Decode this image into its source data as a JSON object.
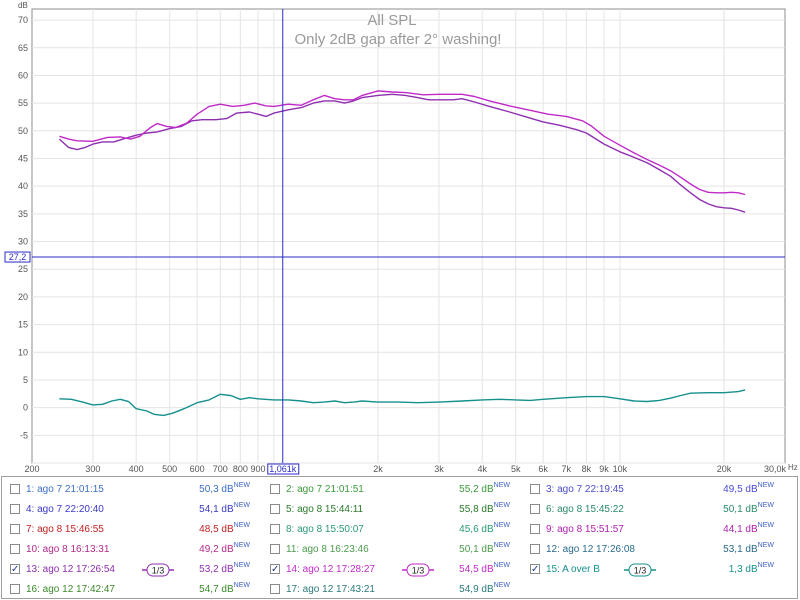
{
  "chart_data": {
    "type": "line",
    "title": "All SPL",
    "subtitle": "Only 2dB gap after 2° washing!",
    "ylabel": "dB",
    "xunit": "Hz",
    "xscale": "log",
    "xlim": [
      200,
      30000
    ],
    "ylim": [
      -10,
      72
    ],
    "grid": true,
    "x_tick_labels": [
      {
        "v": 200,
        "t": "200"
      },
      {
        "v": 300,
        "t": "300"
      },
      {
        "v": 400,
        "t": "400"
      },
      {
        "v": 500,
        "t": "500"
      },
      {
        "v": 600,
        "t": "600"
      },
      {
        "v": 700,
        "t": "700"
      },
      {
        "v": 800,
        "t": "800"
      },
      {
        "v": 900,
        "t": "900"
      },
      {
        "v": 2000,
        "t": "2k"
      },
      {
        "v": 3000,
        "t": "3k"
      },
      {
        "v": 4000,
        "t": "4k"
      },
      {
        "v": 5000,
        "t": "5k"
      },
      {
        "v": 6000,
        "t": "6k"
      },
      {
        "v": 7000,
        "t": "7k"
      },
      {
        "v": 8000,
        "t": "8k"
      },
      {
        "v": 9000,
        "t": "9k"
      },
      {
        "v": 10000,
        "t": "10k"
      },
      {
        "v": 20000,
        "t": "20k"
      },
      {
        "v": 30000,
        "t": "30,0k"
      }
    ],
    "y_tick_labels": [
      {
        "v": 70,
        "t": "70"
      },
      {
        "v": 65,
        "t": "65"
      },
      {
        "v": 60,
        "t": "60"
      },
      {
        "v": 55,
        "t": "55"
      },
      {
        "v": 50,
        "t": "50"
      },
      {
        "v": 45,
        "t": "45"
      },
      {
        "v": 40,
        "t": "40"
      },
      {
        "v": 35,
        "t": "35"
      },
      {
        "v": 30,
        "t": "30"
      },
      {
        "v": 25,
        "t": "25"
      },
      {
        "v": 20,
        "t": "20"
      },
      {
        "v": 15,
        "t": "15"
      },
      {
        "v": 10,
        "t": "10"
      },
      {
        "v": 5,
        "t": "5"
      },
      {
        "v": 0,
        "t": "0"
      },
      {
        "v": -5,
        "t": "-5"
      }
    ],
    "cursor": {
      "x": 1061,
      "x_label": "1,061k",
      "y": 27.2,
      "y_label": "27,2",
      "color": "#2b2bc8"
    },
    "series": [
      {
        "name": "13: ago 12 17:26:54",
        "color": "#8e2fb0",
        "points": [
          [
            240,
            48.5
          ],
          [
            255,
            47
          ],
          [
            270,
            46.6
          ],
          [
            285,
            47
          ],
          [
            300,
            47.6
          ],
          [
            320,
            48
          ],
          [
            345,
            48
          ],
          [
            370,
            48.6
          ],
          [
            400,
            49.2
          ],
          [
            430,
            49.6
          ],
          [
            460,
            49.8
          ],
          [
            500,
            50.4
          ],
          [
            540,
            50.8
          ],
          [
            580,
            51.8
          ],
          [
            620,
            52
          ],
          [
            680,
            52
          ],
          [
            730,
            52.2
          ],
          [
            780,
            53.2
          ],
          [
            850,
            53.4
          ],
          [
            900,
            53
          ],
          [
            950,
            52.6
          ],
          [
            1000,
            53.2
          ],
          [
            1100,
            53.8
          ],
          [
            1200,
            54.2
          ],
          [
            1300,
            55
          ],
          [
            1400,
            55.4
          ],
          [
            1500,
            55.4
          ],
          [
            1600,
            55
          ],
          [
            1700,
            55.4
          ],
          [
            1800,
            56
          ],
          [
            2000,
            56.4
          ],
          [
            2200,
            56.6
          ],
          [
            2400,
            56.4
          ],
          [
            2600,
            56
          ],
          [
            2800,
            55.6
          ],
          [
            3000,
            55.6
          ],
          [
            3300,
            55.6
          ],
          [
            3500,
            55.8
          ],
          [
            3800,
            55.2
          ],
          [
            4200,
            54.4
          ],
          [
            4800,
            53.4
          ],
          [
            5300,
            52.6
          ],
          [
            6000,
            51.6
          ],
          [
            6700,
            51
          ],
          [
            7500,
            50.2
          ],
          [
            8000,
            49.6
          ],
          [
            9000,
            47.6
          ],
          [
            10000,
            46.2
          ],
          [
            11000,
            45.2
          ],
          [
            12000,
            44.2
          ],
          [
            13000,
            43
          ],
          [
            14000,
            41.8
          ],
          [
            15000,
            40.2
          ],
          [
            16000,
            38.8
          ],
          [
            17000,
            37.6
          ],
          [
            18000,
            36.8
          ],
          [
            19000,
            36.3
          ],
          [
            20000,
            36.1
          ],
          [
            21000,
            36
          ],
          [
            22000,
            35.7
          ],
          [
            23000,
            35.3
          ]
        ]
      },
      {
        "name": "14: ago 12 17:28:27",
        "color": "#c02ac8",
        "points": [
          [
            240,
            49
          ],
          [
            255,
            48.5
          ],
          [
            270,
            48.2
          ],
          [
            300,
            48.1
          ],
          [
            330,
            48.8
          ],
          [
            360,
            48.9
          ],
          [
            385,
            48.5
          ],
          [
            410,
            49
          ],
          [
            440,
            50.6
          ],
          [
            460,
            51.3
          ],
          [
            490,
            50.8
          ],
          [
            520,
            50.6
          ],
          [
            560,
            51.4
          ],
          [
            600,
            53
          ],
          [
            650,
            54.4
          ],
          [
            700,
            54.8
          ],
          [
            760,
            54.4
          ],
          [
            820,
            54.6
          ],
          [
            880,
            55
          ],
          [
            950,
            54.5
          ],
          [
            1000,
            54.4
          ],
          [
            1100,
            54.8
          ],
          [
            1200,
            54.6
          ],
          [
            1300,
            55.6
          ],
          [
            1400,
            56.4
          ],
          [
            1500,
            55.8
          ],
          [
            1600,
            55.6
          ],
          [
            1700,
            55.6
          ],
          [
            1800,
            56.4
          ],
          [
            2000,
            57.2
          ],
          [
            2200,
            57
          ],
          [
            2400,
            56.9
          ],
          [
            2700,
            56.5
          ],
          [
            3000,
            56.6
          ],
          [
            3500,
            56.6
          ],
          [
            3800,
            56.2
          ],
          [
            4200,
            55.4
          ],
          [
            4800,
            54.5
          ],
          [
            5500,
            53.7
          ],
          [
            6200,
            53
          ],
          [
            7000,
            52.6
          ],
          [
            7800,
            51.8
          ],
          [
            8300,
            50.8
          ],
          [
            9000,
            49
          ],
          [
            10000,
            47.4
          ],
          [
            11000,
            46
          ],
          [
            12000,
            44.8
          ],
          [
            13000,
            43.8
          ],
          [
            14000,
            42.8
          ],
          [
            15000,
            41.6
          ],
          [
            16000,
            40.4
          ],
          [
            17000,
            39.4
          ],
          [
            18000,
            38.9
          ],
          [
            19000,
            38.8
          ],
          [
            20000,
            38.8
          ],
          [
            21000,
            38.9
          ],
          [
            22000,
            38.8
          ],
          [
            23000,
            38.5
          ]
        ]
      },
      {
        "name": "15: A over B",
        "color": "#15908e",
        "points": [
          [
            240,
            1.6
          ],
          [
            260,
            1.5
          ],
          [
            280,
            1
          ],
          [
            300,
            0.5
          ],
          [
            320,
            0.6
          ],
          [
            340,
            1.2
          ],
          [
            360,
            1.5
          ],
          [
            380,
            1.1
          ],
          [
            400,
            -0.2
          ],
          [
            430,
            -0.6
          ],
          [
            450,
            -1.2
          ],
          [
            480,
            -1.4
          ],
          [
            510,
            -1
          ],
          [
            550,
            -0.2
          ],
          [
            600,
            0.9
          ],
          [
            650,
            1.4
          ],
          [
            700,
            2.4
          ],
          [
            750,
            2.2
          ],
          [
            800,
            1.5
          ],
          [
            850,
            1.8
          ],
          [
            900,
            1.6
          ],
          [
            1000,
            1.4
          ],
          [
            1100,
            1.4
          ],
          [
            1200,
            1.2
          ],
          [
            1300,
            0.9
          ],
          [
            1400,
            1
          ],
          [
            1500,
            1.2
          ],
          [
            1600,
            0.9
          ],
          [
            1700,
            1
          ],
          [
            1800,
            1.2
          ],
          [
            2000,
            1
          ],
          [
            2300,
            1
          ],
          [
            2600,
            0.9
          ],
          [
            3000,
            1
          ],
          [
            3500,
            1.2
          ],
          [
            4000,
            1.4
          ],
          [
            4500,
            1.5
          ],
          [
            5000,
            1.4
          ],
          [
            5500,
            1.3
          ],
          [
            6000,
            1.5
          ],
          [
            7000,
            1.8
          ],
          [
            8000,
            2
          ],
          [
            9000,
            2
          ],
          [
            10000,
            1.6
          ],
          [
            11000,
            1.2
          ],
          [
            12000,
            1.1
          ],
          [
            13000,
            1.3
          ],
          [
            14000,
            1.7
          ],
          [
            15000,
            2.2
          ],
          [
            16000,
            2.6
          ],
          [
            18000,
            2.7
          ],
          [
            20000,
            2.7
          ],
          [
            22000,
            2.9
          ],
          [
            23000,
            3.2
          ]
        ]
      }
    ]
  },
  "legend": {
    "rows": [
      [
        {
          "label": "1: ago 7 21:01:15",
          "value": "50,3 dB",
          "new": "NEW",
          "color": "#3a6fc4",
          "checked": false,
          "smooth": ""
        },
        {
          "label": "2: ago 7 21:01:51",
          "value": "55,2 dB",
          "new": "NEW",
          "color": "#3a9a3a",
          "checked": false,
          "smooth": ""
        },
        {
          "label": "3: ago 7 22:19:45",
          "value": "49,5 dB",
          "new": "NEW",
          "color": "#4a4ad0",
          "checked": false,
          "smooth": ""
        }
      ],
      [
        {
          "label": "4: ago 7 22:20:40",
          "value": "54,1 dB",
          "new": "NEW",
          "color": "#3a3ac8",
          "checked": false,
          "smooth": ""
        },
        {
          "label": "5: ago 8 15:44:11",
          "value": "55,8 dB",
          "new": "NEW",
          "color": "#2a7a2a",
          "checked": false,
          "smooth": ""
        },
        {
          "label": "6: ago 8 15:45:22",
          "value": "50,1 dB",
          "new": "NEW",
          "color": "#2a8a6a",
          "checked": false,
          "smooth": ""
        }
      ],
      [
        {
          "label": "7: ago 8 15:46:55",
          "value": "48,5 dB",
          "new": "NEW",
          "color": "#c02020",
          "checked": false,
          "smooth": ""
        },
        {
          "label": "8: ago 8 15:50:07",
          "value": "45,6 dB",
          "new": "NEW",
          "color": "#2a9a7a",
          "checked": false,
          "smooth": ""
        },
        {
          "label": "9: ago 8 15:51:57",
          "value": "44,1 dB",
          "new": "NEW",
          "color": "#b020b0",
          "checked": false,
          "smooth": ""
        }
      ],
      [
        {
          "label": "10: ago 8 16:13:31",
          "value": "49,2 dB",
          "new": "NEW",
          "color": "#b02a8a",
          "checked": false,
          "smooth": ""
        },
        {
          "label": "11: ago 8 16:23:46",
          "value": "50,1 dB",
          "new": "NEW",
          "color": "#4a9a4a",
          "checked": false,
          "smooth": ""
        },
        {
          "label": "12: ago 12 17:26:08",
          "value": "53,1 dB",
          "new": "NEW",
          "color": "#2a6a8a",
          "checked": false,
          "smooth": ""
        }
      ],
      [
        {
          "label": "13: ago 12 17:26:54",
          "value": "53,2 dB",
          "new": "NEW",
          "color": "#8e2fb0",
          "checked": true,
          "smooth": "1/3"
        },
        {
          "label": "14: ago 12 17:28:27",
          "value": "54,5 dB",
          "new": "NEW",
          "color": "#c02ac8",
          "checked": true,
          "smooth": "1/3"
        },
        {
          "label": "15: A over B",
          "value": "1,3 dB",
          "new": "NEW",
          "color": "#15908e",
          "checked": true,
          "smooth": "1/3"
        }
      ],
      [
        {
          "label": "16: ago 12 17:42:47",
          "value": "54,7 dB",
          "new": "NEW",
          "color": "#3a8a2a",
          "checked": false,
          "smooth": ""
        },
        {
          "label": "17: ago 12 17:43:21",
          "value": "54,9 dB",
          "new": "NEW",
          "color": "#2a7a7a",
          "checked": false,
          "smooth": ""
        }
      ]
    ]
  }
}
